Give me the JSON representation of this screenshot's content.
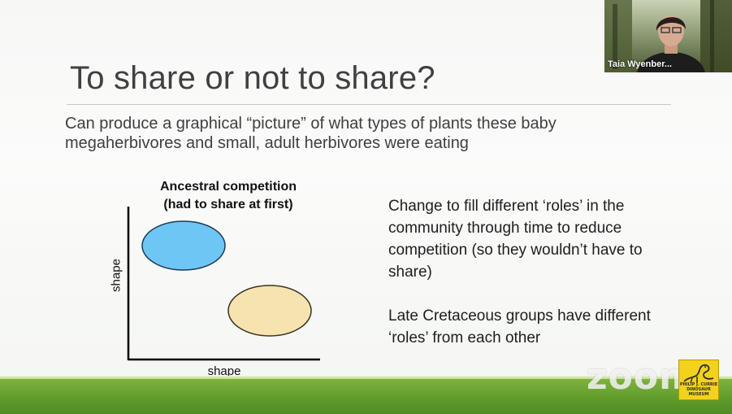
{
  "slide": {
    "title": "To share or not to share?",
    "subtitle": "Can produce a graphical “picture” of what types of plants these baby megaherbivores and small, adult herbivores were eating",
    "chart_title": "Ancestral competition (had to share at first)",
    "bullet_1": "Change to fill different ‘roles’ in the community through time to reduce competition (so they wouldn’t have to share)",
    "bullet_2": "Late Cretaceous groups have different ‘roles’ from each other"
  },
  "chart_data": {
    "type": "scatter",
    "title": "Ancestral competition (had to share at first)",
    "xlabel": "shape",
    "ylabel": "shape",
    "series": [
      {
        "color": "#6ec6f5"
      },
      {
        "color": "#f6e3b0"
      }
    ]
  },
  "video": {
    "participant_name": "Taia Wyenber..."
  },
  "watermark": "zoom",
  "logo": {
    "text": "PHILIP J. CURRIE DINOSAUR MUSEUM"
  },
  "colors": {
    "accent_green": "#6aa530",
    "blob_blue": "#6ec6f5",
    "blob_tan": "#f6e3b0"
  }
}
